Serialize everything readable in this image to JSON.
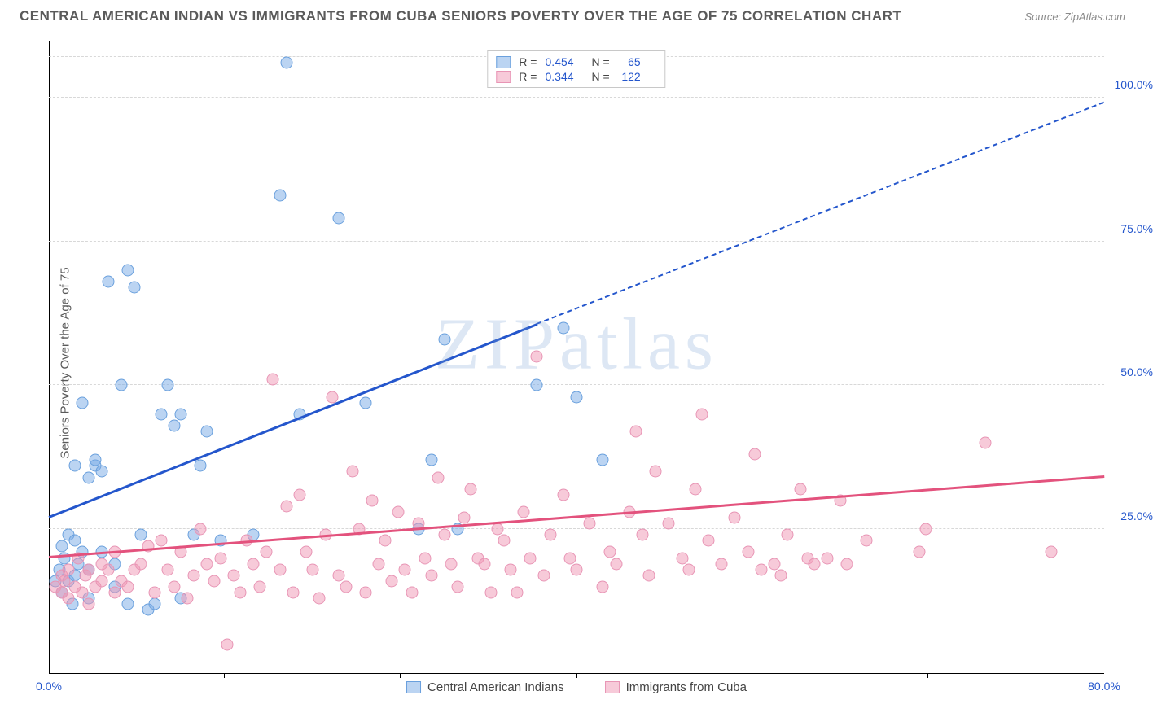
{
  "header": {
    "title": "CENTRAL AMERICAN INDIAN VS IMMIGRANTS FROM CUBA SENIORS POVERTY OVER THE AGE OF 75 CORRELATION CHART",
    "source": "Source: ZipAtlas.com"
  },
  "chart": {
    "type": "scatter",
    "y_axis_label": "Seniors Poverty Over the Age of 75",
    "watermark": "ZIPatlas",
    "xlim": [
      0,
      80
    ],
    "ylim": [
      0,
      110
    ],
    "x_ticks": [
      {
        "v": 0,
        "label": "0.0%"
      },
      {
        "v": 80,
        "label": "80.0%"
      }
    ],
    "x_minor_ticks": [
      13.3,
      26.6,
      40,
      53.3,
      66.6
    ],
    "y_ticks": [
      {
        "v": 25,
        "label": "25.0%"
      },
      {
        "v": 50,
        "label": "50.0%"
      },
      {
        "v": 75,
        "label": "75.0%"
      },
      {
        "v": 100,
        "label": "100.0%"
      }
    ],
    "y_gridlines": [
      25,
      50,
      75,
      100,
      107
    ],
    "background_color": "#ffffff",
    "grid_color": "#d8d8d8",
    "axis_color": "#000000",
    "marker_radius": 7.5,
    "marker_opacity": 0.55,
    "series": [
      {
        "id": "central_american_indians",
        "label": "Central American Indians",
        "color_fill": "rgba(120,170,230,0.5)",
        "color_stroke": "#6aa0dd",
        "trend_color": "#2456cc",
        "trend_solid": {
          "x1": 0,
          "y1": 27,
          "x2": 37,
          "y2": 60.5
        },
        "trend_dashed": {
          "x1": 37,
          "y1": 60.5,
          "x2": 80,
          "y2": 99
        },
        "R": "0.454",
        "N": "65",
        "points": [
          [
            0.5,
            16
          ],
          [
            0.8,
            18
          ],
          [
            1,
            22
          ],
          [
            1,
            14
          ],
          [
            1.2,
            20
          ],
          [
            1.5,
            24
          ],
          [
            1.5,
            16
          ],
          [
            1.8,
            12
          ],
          [
            2,
            36
          ],
          [
            2,
            23
          ],
          [
            2,
            17
          ],
          [
            2.2,
            19
          ],
          [
            2.5,
            47
          ],
          [
            2.5,
            21
          ],
          [
            3,
            34
          ],
          [
            3,
            18
          ],
          [
            3,
            13
          ],
          [
            3.5,
            36
          ],
          [
            3.5,
            37
          ],
          [
            4,
            21
          ],
          [
            4,
            35
          ],
          [
            4.5,
            68
          ],
          [
            5,
            19
          ],
          [
            5,
            15
          ],
          [
            5.5,
            50
          ],
          [
            6,
            70
          ],
          [
            6,
            12
          ],
          [
            6.5,
            67
          ],
          [
            7,
            24
          ],
          [
            7.5,
            11
          ],
          [
            8,
            12
          ],
          [
            8.5,
            45
          ],
          [
            9,
            50
          ],
          [
            9.5,
            43
          ],
          [
            10,
            45
          ],
          [
            10,
            13
          ],
          [
            11,
            24
          ],
          [
            11.5,
            36
          ],
          [
            12,
            42
          ],
          [
            13,
            23
          ],
          [
            15.5,
            24
          ],
          [
            17.5,
            83
          ],
          [
            18,
            106
          ],
          [
            19,
            45
          ],
          [
            22,
            79
          ],
          [
            24,
            47
          ],
          [
            28,
            25
          ],
          [
            29,
            37
          ],
          [
            30,
            58
          ],
          [
            31,
            25
          ],
          [
            37,
            50
          ],
          [
            39,
            60
          ],
          [
            40,
            48
          ],
          [
            42,
            37
          ]
        ]
      },
      {
        "id": "immigrants_from_cuba",
        "label": "Immigrants from Cuba",
        "color_fill": "rgba(240,150,180,0.5)",
        "color_stroke": "#e895b5",
        "trend_color": "#e3527d",
        "trend_solid": {
          "x1": 0,
          "y1": 20,
          "x2": 80,
          "y2": 34
        },
        "trend_dashed": null,
        "R": "0.344",
        "N": "122",
        "points": [
          [
            0.5,
            15
          ],
          [
            1,
            17
          ],
          [
            1,
            14
          ],
          [
            1.2,
            16
          ],
          [
            1.5,
            13
          ],
          [
            1.5,
            18
          ],
          [
            2,
            15
          ],
          [
            2.2,
            20
          ],
          [
            2.5,
            14
          ],
          [
            2.8,
            17
          ],
          [
            3,
            18
          ],
          [
            3,
            12
          ],
          [
            3.5,
            15
          ],
          [
            4,
            19
          ],
          [
            4,
            16
          ],
          [
            4.5,
            18
          ],
          [
            5,
            21
          ],
          [
            5,
            14
          ],
          [
            5.5,
            16
          ],
          [
            6,
            15
          ],
          [
            6.5,
            18
          ],
          [
            7,
            19
          ],
          [
            7.5,
            22
          ],
          [
            8,
            14
          ],
          [
            8.5,
            23
          ],
          [
            9,
            18
          ],
          [
            9.5,
            15
          ],
          [
            10,
            21
          ],
          [
            10.5,
            13
          ],
          [
            11,
            17
          ],
          [
            11.5,
            25
          ],
          [
            12,
            19
          ],
          [
            12.5,
            16
          ],
          [
            13,
            20
          ],
          [
            13.5,
            5
          ],
          [
            14,
            17
          ],
          [
            14.5,
            14
          ],
          [
            15,
            23
          ],
          [
            15.5,
            19
          ],
          [
            16,
            15
          ],
          [
            16.5,
            21
          ],
          [
            17,
            51
          ],
          [
            17.5,
            18
          ],
          [
            18,
            29
          ],
          [
            18.5,
            14
          ],
          [
            19,
            31
          ],
          [
            19.5,
            21
          ],
          [
            20,
            18
          ],
          [
            20.5,
            13
          ],
          [
            21,
            24
          ],
          [
            21.5,
            48
          ],
          [
            22,
            17
          ],
          [
            22.5,
            15
          ],
          [
            23,
            35
          ],
          [
            23.5,
            25
          ],
          [
            24,
            14
          ],
          [
            24.5,
            30
          ],
          [
            25,
            19
          ],
          [
            25.5,
            23
          ],
          [
            26,
            16
          ],
          [
            26.5,
            28
          ],
          [
            27,
            18
          ],
          [
            27.5,
            14
          ],
          [
            28,
            26
          ],
          [
            28.5,
            20
          ],
          [
            29,
            17
          ],
          [
            29.5,
            34
          ],
          [
            30,
            24
          ],
          [
            30.5,
            19
          ],
          [
            31,
            15
          ],
          [
            31.5,
            27
          ],
          [
            32,
            32
          ],
          [
            32.5,
            20
          ],
          [
            33,
            19
          ],
          [
            33.5,
            14
          ],
          [
            34,
            25
          ],
          [
            34.5,
            23
          ],
          [
            35,
            18
          ],
          [
            35.5,
            14
          ],
          [
            36,
            28
          ],
          [
            36.5,
            20
          ],
          [
            37,
            55
          ],
          [
            37.5,
            17
          ],
          [
            38,
            24
          ],
          [
            39,
            31
          ],
          [
            39.5,
            20
          ],
          [
            40,
            18
          ],
          [
            41,
            26
          ],
          [
            42,
            15
          ],
          [
            42.5,
            21
          ],
          [
            43,
            19
          ],
          [
            44,
            28
          ],
          [
            44.5,
            42
          ],
          [
            45,
            24
          ],
          [
            45.5,
            17
          ],
          [
            46,
            35
          ],
          [
            47,
            26
          ],
          [
            48,
            20
          ],
          [
            48.5,
            18
          ],
          [
            49,
            32
          ],
          [
            49.5,
            45
          ],
          [
            50,
            23
          ],
          [
            51,
            19
          ],
          [
            52,
            27
          ],
          [
            53,
            21
          ],
          [
            53.5,
            38
          ],
          [
            54,
            18
          ],
          [
            55,
            19
          ],
          [
            55.5,
            17
          ],
          [
            56,
            24
          ],
          [
            57,
            32
          ],
          [
            57.5,
            20
          ],
          [
            58,
            19
          ],
          [
            59,
            20
          ],
          [
            60,
            30
          ],
          [
            60.5,
            19
          ],
          [
            62,
            23
          ],
          [
            66,
            21
          ],
          [
            66.5,
            25
          ],
          [
            71,
            40
          ],
          [
            76,
            21
          ]
        ]
      }
    ]
  }
}
